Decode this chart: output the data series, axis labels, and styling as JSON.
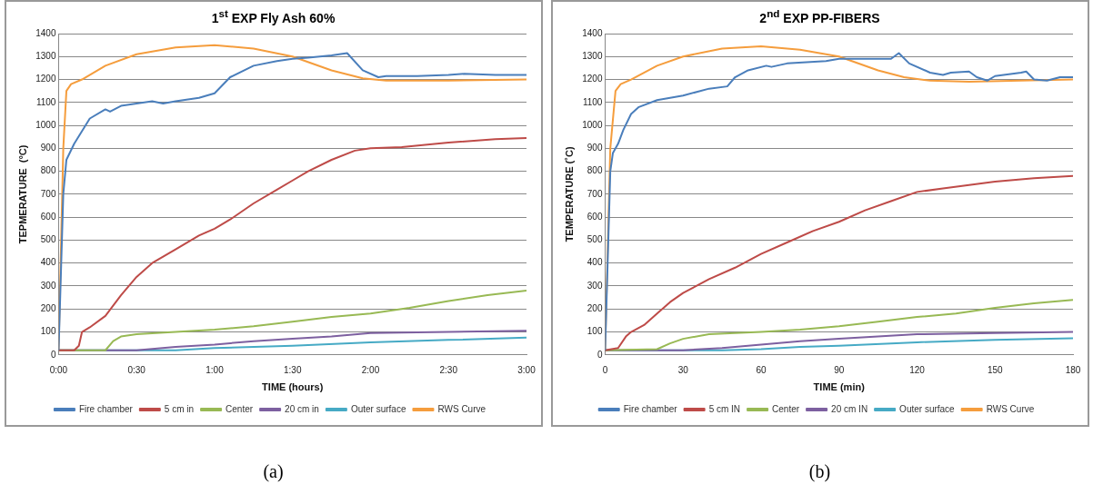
{
  "chart_data": [
    {
      "type": "line",
      "title": "1$^{st}$ EXP Fly Ash 60%",
      "xlabel": "TIME (hours)",
      "ylabel": "TEPMERATURE  (°C)",
      "xlim": [
        0,
        3
      ],
      "xticks": [
        {
          "value": 0,
          "label": "0:00"
        },
        {
          "value": 0.5,
          "label": "0:30"
        },
        {
          "value": 1,
          "label": "1:00"
        },
        {
          "value": 1.5,
          "label": "1:30"
        },
        {
          "value": 2,
          "label": "2:00"
        },
        {
          "value": 2.5,
          "label": "2:30"
        },
        {
          "value": 3,
          "label": "3:00"
        }
      ],
      "ylim": [
        0,
        1400
      ],
      "yticks": [
        0,
        100,
        200,
        300,
        400,
        500,
        600,
        700,
        800,
        900,
        1000,
        1100,
        1200,
        1300,
        1400
      ],
      "grid": "y",
      "legend": "bottom",
      "marker": "none",
      "line_style": "solid",
      "annotations": [
        "(a)"
      ],
      "series": [
        {
          "name": "Fire chamber",
          "color": "#4a7ebb",
          "x": [
            0,
            0.03,
            0.05,
            0.1,
            0.2,
            0.3,
            0.33,
            0.4,
            0.5,
            0.6,
            0.67,
            0.75,
            0.9,
            1.0,
            1.1,
            1.25,
            1.4,
            1.5,
            1.6,
            1.75,
            1.85,
            1.95,
            2.05,
            2.1,
            2.3,
            2.5,
            2.6,
            2.8,
            3.0
          ],
          "values": [
            20,
            700,
            850,
            920,
            1030,
            1070,
            1060,
            1085,
            1095,
            1105,
            1095,
            1105,
            1120,
            1140,
            1210,
            1260,
            1280,
            1290,
            1295,
            1305,
            1315,
            1240,
            1210,
            1215,
            1215,
            1220,
            1225,
            1220,
            1220
          ]
        },
        {
          "name": "5 cm in",
          "color": "#be4b48",
          "x": [
            0,
            0.1,
            0.13,
            0.15,
            0.2,
            0.3,
            0.4,
            0.5,
            0.6,
            0.75,
            0.9,
            1.0,
            1.1,
            1.25,
            1.4,
            1.5,
            1.6,
            1.75,
            1.9,
            2.0,
            2.2,
            2.5,
            2.8,
            3.0
          ],
          "values": [
            20,
            20,
            40,
            100,
            120,
            170,
            260,
            340,
            400,
            460,
            520,
            550,
            590,
            660,
            720,
            760,
            800,
            850,
            890,
            900,
            905,
            925,
            940,
            945
          ]
        },
        {
          "name": "Center",
          "color": "#98b954",
          "x": [
            0,
            0.3,
            0.35,
            0.4,
            0.5,
            0.75,
            1.0,
            1.25,
            1.5,
            1.75,
            2.0,
            2.25,
            2.5,
            2.75,
            3.0
          ],
          "values": [
            20,
            20,
            60,
            80,
            90,
            100,
            110,
            125,
            145,
            165,
            180,
            205,
            235,
            260,
            280
          ]
        },
        {
          "name": "20 cm in",
          "color": "#7d60a0",
          "x": [
            0,
            0.5,
            0.75,
            1.0,
            1.25,
            1.5,
            1.75,
            2.0,
            2.5,
            3.0
          ],
          "values": [
            20,
            20,
            35,
            45,
            60,
            70,
            80,
            95,
            100,
            105
          ]
        },
        {
          "name": "Outer surface",
          "color": "#46aac5",
          "x": [
            0,
            0.75,
            1.0,
            1.5,
            2.0,
            2.5,
            3.0
          ],
          "values": [
            20,
            20,
            30,
            40,
            55,
            65,
            75
          ]
        },
        {
          "name": "RWS Curve",
          "color": "#f59d3d",
          "x": [
            0,
            0.03,
            0.05,
            0.08,
            0.15,
            0.3,
            0.5,
            0.75,
            1.0,
            1.25,
            1.5,
            1.75,
            1.95,
            2.1,
            2.5,
            3.0
          ],
          "values": [
            20,
            900,
            1150,
            1180,
            1200,
            1260,
            1310,
            1340,
            1350,
            1335,
            1300,
            1240,
            1205,
            1195,
            1195,
            1200
          ]
        }
      ]
    },
    {
      "type": "line",
      "title": "2$^{nd}$ EXP   PP-FIBERS",
      "xlabel": "TIME (min)",
      "ylabel": "TEMPERATURE (˚C)",
      "xlim": [
        0,
        180
      ],
      "xticks": [
        0,
        30,
        60,
        90,
        120,
        150,
        180
      ],
      "ylim": [
        0,
        1400
      ],
      "yticks": [
        0,
        100,
        200,
        300,
        400,
        500,
        600,
        700,
        800,
        900,
        1000,
        1100,
        1200,
        1300,
        1400
      ],
      "grid": "y",
      "legend": "bottom",
      "marker": "none",
      "line_style": "solid",
      "annotations": [
        "(b)"
      ],
      "series": [
        {
          "name": "Fire chamber",
          "color": "#4a7ebb",
          "x": [
            0,
            2,
            3,
            5,
            7,
            10,
            13,
            20,
            30,
            40,
            47,
            50,
            55,
            62,
            64,
            70,
            85,
            90,
            100,
            110,
            113,
            117,
            125,
            130,
            133,
            140,
            143,
            147,
            150,
            160,
            162,
            165,
            170,
            175,
            180
          ],
          "values": [
            20,
            800,
            880,
            920,
            980,
            1050,
            1080,
            1110,
            1130,
            1160,
            1170,
            1210,
            1240,
            1260,
            1255,
            1270,
            1280,
            1290,
            1290,
            1290,
            1315,
            1270,
            1230,
            1220,
            1230,
            1235,
            1210,
            1195,
            1215,
            1230,
            1235,
            1200,
            1195,
            1210,
            1210
          ]
        },
        {
          "name": "5 cm IN",
          "color": "#be4b48",
          "x": [
            0,
            5,
            8,
            10,
            15,
            20,
            25,
            30,
            40,
            50,
            60,
            70,
            80,
            90,
            100,
            110,
            120,
            130,
            140,
            150,
            165,
            180
          ],
          "values": [
            20,
            30,
            80,
            100,
            130,
            180,
            230,
            270,
            330,
            380,
            440,
            490,
            540,
            580,
            630,
            670,
            710,
            725,
            740,
            755,
            770,
            780
          ]
        },
        {
          "name": "Center",
          "color": "#98b954",
          "x": [
            0,
            20,
            25,
            30,
            40,
            50,
            60,
            75,
            90,
            105,
            120,
            135,
            150,
            165,
            180
          ],
          "values": [
            20,
            25,
            50,
            70,
            90,
            95,
            100,
            110,
            125,
            145,
            165,
            180,
            205,
            225,
            240
          ]
        },
        {
          "name": "20 cm IN",
          "color": "#7d60a0",
          "x": [
            0,
            30,
            45,
            60,
            75,
            90,
            105,
            120,
            150,
            180
          ],
          "values": [
            20,
            20,
            30,
            45,
            60,
            70,
            80,
            90,
            95,
            100
          ]
        },
        {
          "name": "Outer surface",
          "color": "#46aac5",
          "x": [
            0,
            45,
            60,
            75,
            90,
            120,
            150,
            180
          ],
          "values": [
            20,
            20,
            25,
            35,
            40,
            55,
            65,
            72
          ]
        },
        {
          "name": "RWS Curve",
          "color": "#f59d3d",
          "x": [
            0,
            2,
            4,
            6,
            10,
            20,
            30,
            45,
            60,
            75,
            90,
            105,
            115,
            125,
            140,
            160,
            180
          ],
          "values": [
            20,
            900,
            1150,
            1180,
            1200,
            1260,
            1300,
            1335,
            1345,
            1330,
            1300,
            1240,
            1210,
            1195,
            1190,
            1195,
            1200
          ]
        }
      ]
    }
  ]
}
